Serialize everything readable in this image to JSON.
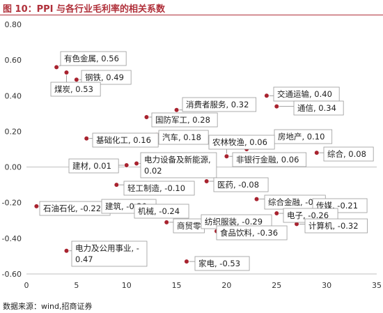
{
  "header": {
    "title": "图 10：PPI 与各行业毛利率的相关系数"
  },
  "footer": {
    "source": "数据来源：wind,招商证券"
  },
  "colors": {
    "title": "#b0303a",
    "marker": "#a8232f",
    "axis": "#bfbfbf",
    "label_border": "#999999"
  },
  "chart_data": {
    "type": "scatter",
    "xlim": [
      0,
      35
    ],
    "ylim": [
      -0.6,
      0.8
    ],
    "xticks": [
      0,
      5,
      10,
      15,
      20,
      25,
      30,
      35
    ],
    "yticks": [
      "0.80",
      "0.60",
      "0.40",
      "0.20",
      "0.00",
      "-0.20",
      "-0.40",
      "-0.60"
    ],
    "grid": false,
    "points": [
      {
        "label": "有色金属, 0.56",
        "x": 3,
        "y": 0.56
      },
      {
        "label": "钢铁, 0.49",
        "x": 5,
        "y": 0.49
      },
      {
        "label": "煤炭, 0.53",
        "x": 4,
        "y": 0.53
      },
      {
        "label": "交通运输, 0.40",
        "x": 24,
        "y": 0.4
      },
      {
        "label": "通信, 0.34",
        "x": 25,
        "y": 0.34
      },
      {
        "label": "消费者服务, 0.32",
        "x": 15,
        "y": 0.32
      },
      {
        "label": "国防军工, 0.28",
        "x": 12,
        "y": 0.28
      },
      {
        "label": "基础化工, 0.16",
        "x": 6,
        "y": 0.16
      },
      {
        "label": "汽车, 0.18",
        "x": 13,
        "y": 0.18
      },
      {
        "label": "房地产, 0.10",
        "x": 22,
        "y": 0.1
      },
      {
        "label": "综合, 0.08",
        "x": 29,
        "y": 0.08
      },
      {
        "label": "农林牧渔, 0.06",
        "x": 20,
        "y": 0.06
      },
      {
        "label": "非银行金融, 0.06",
        "x": 20,
        "y": 0.06
      },
      {
        "label": "建材, 0.01",
        "x": 10,
        "y": 0.01
      },
      {
        "label": "电力设备及新能源, 0.02",
        "x": 11,
        "y": 0.02
      },
      {
        "label": "轻工制造, -0.10",
        "x": 9,
        "y": -0.1
      },
      {
        "label": "医药, -0.08",
        "x": 18,
        "y": -0.08
      },
      {
        "label": "综合金融, -0.",
        "x": 23,
        "y": -0.18
      },
      {
        "label": "传媒, -0.21",
        "x": 27,
        "y": -0.21
      },
      {
        "label": "电子, -0.26",
        "x": 25,
        "y": -0.26
      },
      {
        "label": "计算机, -0.32",
        "x": 27,
        "y": -0.32
      },
      {
        "label": "石油石化, -0.22",
        "x": 1,
        "y": -0.22
      },
      {
        "label": "建筑, -0.20",
        "x": 9,
        "y": -0.2
      },
      {
        "label": "机械, -0.24",
        "x": 10,
        "y": -0.24
      },
      {
        "label": "商贸零",
        "x": 14,
        "y": -0.31
      },
      {
        "label": "纺织服装, -0.29",
        "x": 18,
        "y": -0.29
      },
      {
        "label": "食品饮料, -0.36",
        "x": 19,
        "y": -0.36
      },
      {
        "label": "电力及公用事业, -0.47",
        "x": 4,
        "y": -0.47
      },
      {
        "label": "家电, -0.53",
        "x": 16,
        "y": -0.53
      }
    ]
  }
}
